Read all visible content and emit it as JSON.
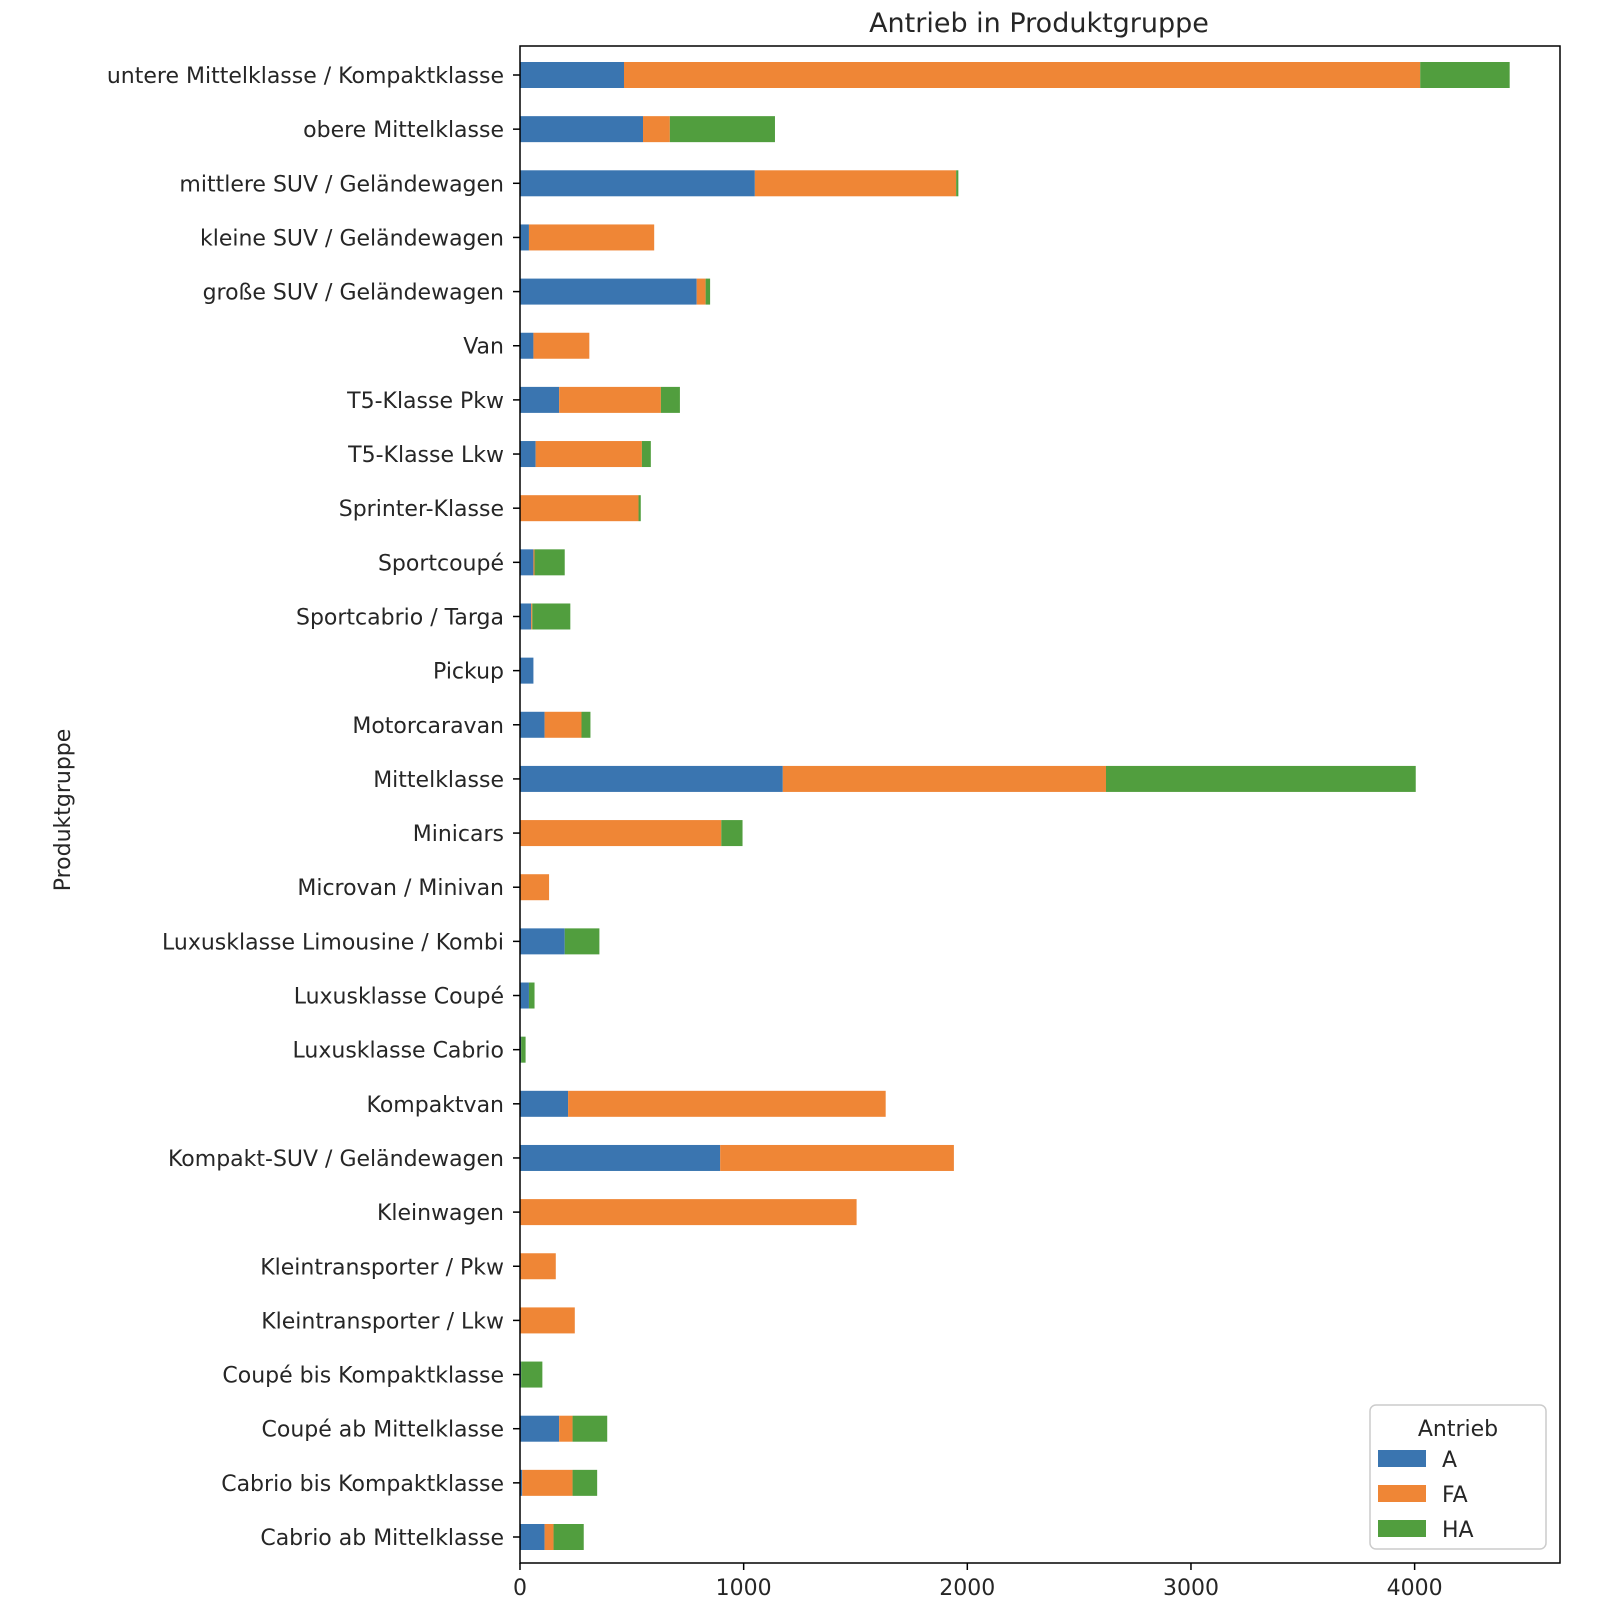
{
  "chart_data": {
    "type": "bar",
    "orientation": "horizontal",
    "stacked": true,
    "title": "Antrieb in Produktgruppe",
    "xlabel": "",
    "ylabel": "Produktgruppe",
    "xlim": [
      0,
      4650
    ],
    "xticks": [
      0,
      1000,
      2000,
      3000,
      4000
    ],
    "xtick_labels": [
      "0",
      "1000",
      "2000",
      "3000",
      "4000"
    ],
    "grid": false,
    "legend": {
      "title": "Antrieb",
      "position": "lower-right"
    },
    "categories": [
      "untere Mittelklasse / Kompaktklasse",
      "obere Mittelklasse",
      "mittlere SUV / Geländewagen",
      "kleine SUV / Geländewagen",
      "große SUV / Geländewagen",
      "Van",
      "T5-Klasse Pkw",
      "T5-Klasse Lkw",
      "Sprinter-Klasse",
      "Sportcoupé",
      "Sportcabrio / Targa",
      "Pickup",
      "Motorcaravan",
      "Mittelklasse",
      "Minicars",
      "Microvan / Minivan",
      "Luxusklasse Limousine / Kombi",
      "Luxusklasse Coupé",
      "Luxusklasse Cabrio",
      "Kompaktvan",
      "Kompakt-SUV / Geländewagen",
      "Kleinwagen",
      "Kleintransporter / Pkw",
      "Kleintransporter / Lkw",
      "Coupé bis Kompaktklasse",
      "Coupé ab Mittelklasse",
      "Cabrio bis Kompaktklasse",
      "Cabrio ab Mittelklasse"
    ],
    "series": [
      {
        "name": "A",
        "color": "#3a75b0",
        "values": [
          465,
          550,
          1050,
          40,
          790,
          60,
          175,
          70,
          0,
          60,
          50,
          60,
          110,
          1175,
          0,
          0,
          200,
          40,
          5,
          215,
          895,
          0,
          0,
          0,
          5,
          175,
          10,
          110
        ]
      },
      {
        "name": "FA",
        "color": "#ef8636",
        "values": [
          3560,
          120,
          900,
          560,
          40,
          250,
          455,
          475,
          530,
          5,
          5,
          0,
          165,
          1445,
          900,
          130,
          0,
          0,
          0,
          1420,
          1045,
          1505,
          160,
          245,
          0,
          60,
          225,
          40
        ]
      },
      {
        "name": "HA",
        "color": "#519e3e",
        "values": [
          400,
          470,
          10,
          0,
          20,
          0,
          85,
          40,
          10,
          135,
          170,
          0,
          40,
          1385,
          95,
          0,
          155,
          25,
          20,
          0,
          0,
          0,
          0,
          0,
          95,
          155,
          110,
          135
        ]
      }
    ]
  }
}
